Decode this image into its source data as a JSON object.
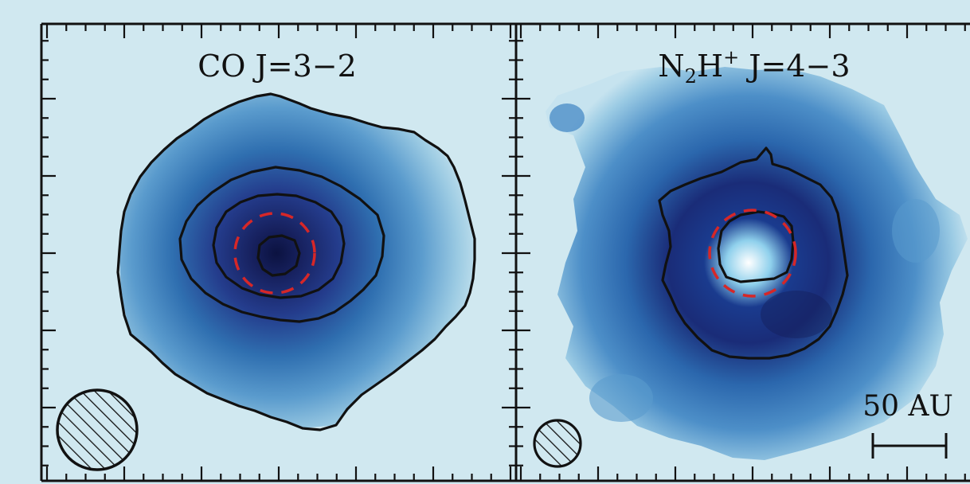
{
  "chart_data": [
    {
      "type": "heatmap",
      "title": "CO J=3−2",
      "title_parts": {
        "base": "CO J=3−2",
        "sub": "",
        "sup": ""
      },
      "description_hidden": false,
      "morphology": "centrally peaked",
      "contour_levels": 4,
      "dashed_ring": true,
      "beam": "large hatched circle",
      "colormap": "Blues"
    },
    {
      "type": "heatmap",
      "title": "N2H+ J=4−3",
      "title_parts": {
        "pre": "N",
        "sub": "2",
        "mid": "H",
        "sup": "+",
        "post": " J=4−3"
      },
      "morphology": "ring with central hole",
      "contour_levels": 2,
      "dashed_ring": true,
      "beam": "small hatched circle",
      "colormap": "Blues",
      "scale_bar": {
        "label": "50 AU",
        "length_au": 50
      }
    }
  ],
  "colors": {
    "background": "#d0e8f0",
    "dark": "#0d1a4e",
    "mid": "#2f6fb0",
    "light": "#8fc4e0",
    "contour": "#111111",
    "ring": "#d62728"
  }
}
